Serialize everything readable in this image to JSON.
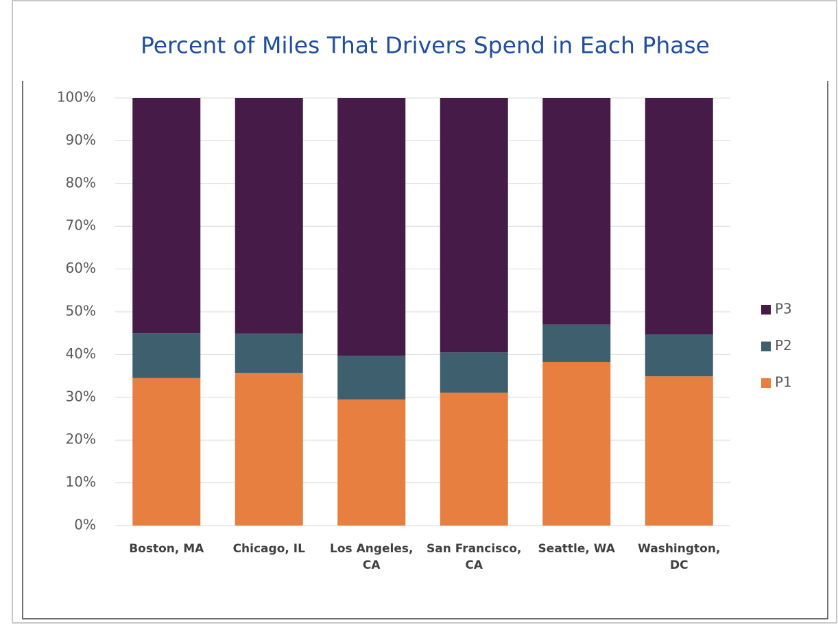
{
  "chart_data": {
    "type": "stacked_bar",
    "title": "Percent of Miles That Drivers Spend in Each Phase",
    "categories": [
      "Boston, MA",
      "Chicago, IL",
      "Los Angeles, CA",
      "San Francisco, CA",
      "Seattle, WA",
      "Washington, DC"
    ],
    "series": [
      {
        "name": "P1",
        "color": "#e67f40",
        "values": [
          34.5,
          35.7,
          29.5,
          31.1,
          38.3,
          34.9
        ]
      },
      {
        "name": "P2",
        "color": "#3d5f6e",
        "values": [
          10.5,
          9.2,
          10.2,
          9.4,
          8.7,
          9.8
        ]
      },
      {
        "name": "P3",
        "color": "#461b47",
        "values": [
          55.0,
          55.1,
          60.3,
          59.5,
          53.0,
          55.3
        ]
      }
    ],
    "ylim": [
      0,
      100
    ],
    "yticks": [
      {
        "value": 0,
        "label": "0%"
      },
      {
        "value": 10,
        "label": "10%"
      },
      {
        "value": 20,
        "label": "20%"
      },
      {
        "value": 30,
        "label": "30%"
      },
      {
        "value": 40,
        "label": "40%"
      },
      {
        "value": 50,
        "label": "50%"
      },
      {
        "value": 60,
        "label": "60%"
      },
      {
        "value": 70,
        "label": "70%"
      },
      {
        "value": 80,
        "label": "80%"
      },
      {
        "value": 90,
        "label": "90%"
      },
      {
        "value": 100,
        "label": "100%"
      }
    ],
    "grid": true,
    "legend": "right"
  }
}
